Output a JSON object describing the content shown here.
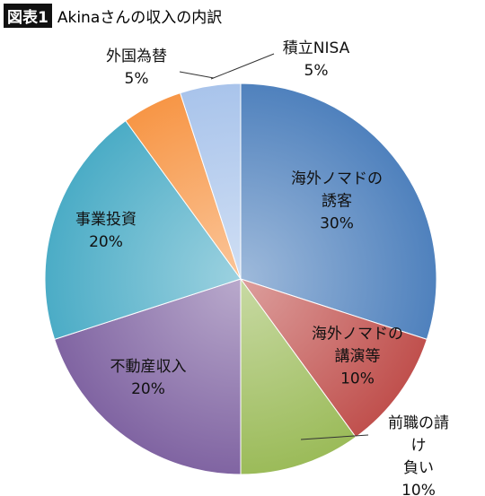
{
  "chart_data": {
    "type": "pie",
    "figure_label": "図表1",
    "title": "Akinaさんの収入の内訳",
    "categories": [
      "海外ノマドの\n誘客",
      "海外ノマドの\n講演等",
      "前職の請け\n負い",
      "不動産収入",
      "事業投資",
      "外国為替",
      "積立NISA"
    ],
    "values": [
      30,
      10,
      10,
      20,
      20,
      5,
      5
    ],
    "value_labels": [
      "30%",
      "10%",
      "10%",
      "20%",
      "20%",
      "5%",
      "5%"
    ],
    "colors": [
      "#4f81bd",
      "#c0504d",
      "#9bbb59",
      "#8064a2",
      "#4bacc6",
      "#f79646",
      "#a9c4eb"
    ]
  }
}
